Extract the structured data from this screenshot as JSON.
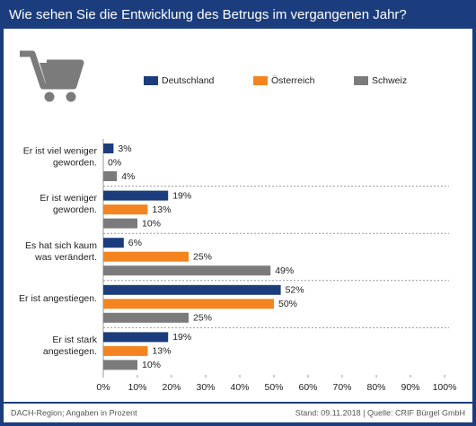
{
  "chart_data": {
    "type": "hbar",
    "title": "Wie sehen Sie die Entwicklung des Betrugs im vergangenen Jahr?",
    "categories": [
      [
        "Er ist viel weniger",
        "geworden."
      ],
      [
        "Er ist weniger",
        "geworden."
      ],
      [
        "Es hat sich kaum",
        "was verändert."
      ],
      [
        "Er ist angestiegen."
      ],
      [
        "Er ist stark",
        "angestiegen."
      ]
    ],
    "series": [
      {
        "name": "Deutschland",
        "color": "#1b3d7d",
        "values": [
          3,
          19,
          6,
          52,
          19
        ],
        "value_labels": [
          "3%",
          "19%",
          "6%",
          "52%",
          "19%"
        ]
      },
      {
        "name": "Österreich",
        "color": "#f4841f",
        "values": [
          0,
          13,
          25,
          50,
          13
        ],
        "value_labels": [
          "0%",
          "13%",
          "25%",
          "50%",
          "13%"
        ]
      },
      {
        "name": "Schweiz",
        "color": "#7b7b7b",
        "values": [
          4,
          10,
          49,
          25,
          10
        ],
        "value_labels": [
          "4%",
          "10%",
          "49%",
          "25%",
          "10%"
        ]
      }
    ],
    "xlim": [
      0,
      100
    ],
    "xticks": [
      {
        "value": 0,
        "label": "0%"
      },
      {
        "value": 10,
        "label": "10%"
      },
      {
        "value": 20,
        "label": "20%"
      },
      {
        "value": 30,
        "label": "30%"
      },
      {
        "value": 40,
        "label": "40%"
      },
      {
        "value": 50,
        "label": "50%"
      },
      {
        "value": 60,
        "label": "60%"
      },
      {
        "value": 70,
        "label": "70%"
      },
      {
        "value": 80,
        "label": "80%"
      },
      {
        "value": 90,
        "label": "90%"
      },
      {
        "value": 100,
        "label": "100%"
      }
    ],
    "legend": "top",
    "footer_left": "DACH-Region; Angaben in Prozent",
    "footer_right": "Stand: 09.11.2018 | Quelle: CRIF Bürgel GmbH"
  }
}
